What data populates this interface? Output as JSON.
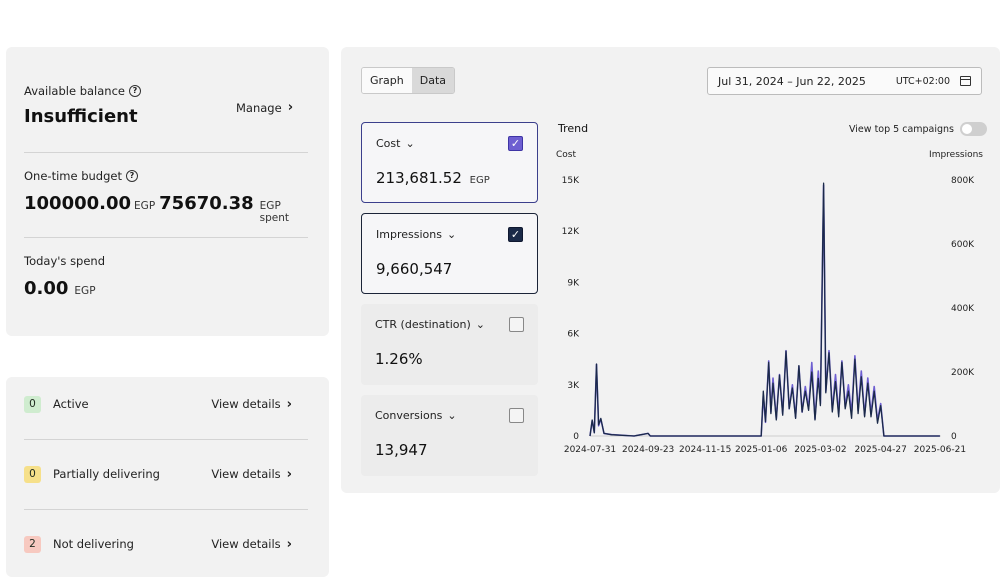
{
  "balance": {
    "available_label": "Available balance",
    "available_value": "Insufficient",
    "manage_label": "Manage",
    "budget_label": "One-time budget",
    "budget_value": "100000.00",
    "budget_unit": "EGP",
    "spent_value": "75670.38",
    "spent_unit": "EGP spent",
    "today_label": "Today's spend",
    "today_value": "0.00",
    "today_unit": "EGP"
  },
  "status": {
    "rows": [
      {
        "count": "0",
        "label": "Active",
        "link": "View details",
        "color": "#cfeccf"
      },
      {
        "count": "0",
        "label": "Partially delivering",
        "link": "View details",
        "color": "#f6e08a"
      },
      {
        "count": "2",
        "label": "Not delivering",
        "link": "View details",
        "color": "#f7c9c0"
      }
    ]
  },
  "toolbar": {
    "graph_label": "Graph",
    "data_label": "Data",
    "date_range": "Jul 31, 2024 – Jun 22, 2025",
    "timezone": "UTC+02:00"
  },
  "metrics": {
    "cost": {
      "name": "Cost",
      "value": "213,681.52",
      "unit": "EGP",
      "checked": true
    },
    "impressions": {
      "name": "Impressions",
      "value": "9,660,547",
      "checked": true
    },
    "ctr": {
      "name": "CTR (destination)",
      "value": "1.26%",
      "checked": false
    },
    "conversions": {
      "name": "Conversions",
      "value": "13,947",
      "checked": false
    }
  },
  "trend": {
    "title": "Trend",
    "view_top_label": "View top 5 campaigns"
  },
  "colors": {
    "cost_series": "#6e5fd1",
    "impressions_series": "#1b2a48"
  },
  "chart_data": {
    "type": "line",
    "left_axis_label": "Cost",
    "right_axis_label": "Impressions",
    "left_ticks": [
      "0",
      "3K",
      "6K",
      "9K",
      "12K",
      "15K"
    ],
    "right_ticks": [
      "0",
      "200K",
      "400K",
      "600K",
      "800K"
    ],
    "ylim_left": [
      0,
      15000
    ],
    "ylim_right": [
      0,
      800000
    ],
    "x_tick_labels": [
      "2024-07-31",
      "2024-09-23",
      "2024-11-15",
      "2025-01-06",
      "2025-03-02",
      "2025-04-27",
      "2025-06-21"
    ],
    "x_range": [
      "2024-07-31",
      "2025-06-22"
    ],
    "series": [
      {
        "name": "Cost",
        "axis": "left",
        "points": [
          [
            "2024-07-31",
            0
          ],
          [
            "2024-08-02",
            900
          ],
          [
            "2024-08-04",
            200
          ],
          [
            "2024-08-06",
            4200
          ],
          [
            "2024-08-08",
            600
          ],
          [
            "2024-08-10",
            1000
          ],
          [
            "2024-08-13",
            150
          ],
          [
            "2024-08-20",
            80
          ],
          [
            "2024-09-10",
            0
          ],
          [
            "2024-09-23",
            150
          ],
          [
            "2024-09-25",
            0
          ],
          [
            "2025-01-06",
            0
          ],
          [
            "2025-01-08",
            2400
          ],
          [
            "2025-01-10",
            800
          ],
          [
            "2025-01-13",
            4400
          ],
          [
            "2025-01-15",
            1400
          ],
          [
            "2025-01-17",
            3400
          ],
          [
            "2025-01-20",
            1000
          ],
          [
            "2025-01-23",
            3600
          ],
          [
            "2025-01-26",
            1300
          ],
          [
            "2025-01-29",
            5000
          ],
          [
            "2025-02-01",
            1600
          ],
          [
            "2025-02-04",
            3000
          ],
          [
            "2025-02-07",
            1100
          ],
          [
            "2025-02-10",
            4100
          ],
          [
            "2025-02-13",
            1400
          ],
          [
            "2025-02-16",
            2900
          ],
          [
            "2025-02-19",
            1600
          ],
          [
            "2025-02-22",
            4300
          ],
          [
            "2025-02-25",
            1000
          ],
          [
            "2025-02-28",
            3800
          ],
          [
            "2025-03-02",
            1900
          ],
          [
            "2025-03-05",
            14700
          ],
          [
            "2025-03-07",
            2600
          ],
          [
            "2025-03-10",
            5000
          ],
          [
            "2025-03-13",
            1500
          ],
          [
            "2025-03-16",
            3600
          ],
          [
            "2025-03-19",
            1300
          ],
          [
            "2025-03-22",
            4400
          ],
          [
            "2025-03-25",
            1700
          ],
          [
            "2025-03-28",
            3000
          ],
          [
            "2025-03-31",
            1300
          ],
          [
            "2025-04-03",
            4700
          ],
          [
            "2025-04-06",
            1500
          ],
          [
            "2025-04-09",
            3800
          ],
          [
            "2025-04-12",
            1200
          ],
          [
            "2025-04-15",
            3400
          ],
          [
            "2025-04-18",
            1300
          ],
          [
            "2025-04-21",
            2900
          ],
          [
            "2025-04-24",
            900
          ],
          [
            "2025-04-27",
            1900
          ],
          [
            "2025-04-30",
            0
          ],
          [
            "2025-06-21",
            0
          ]
        ]
      },
      {
        "name": "Impressions",
        "axis": "right",
        "points": [
          [
            "2024-07-31",
            0
          ],
          [
            "2024-08-02",
            50000
          ],
          [
            "2024-08-04",
            10000
          ],
          [
            "2024-08-06",
            225000
          ],
          [
            "2024-08-08",
            35000
          ],
          [
            "2024-08-10",
            55000
          ],
          [
            "2024-08-13",
            8000
          ],
          [
            "2024-08-20",
            4000
          ],
          [
            "2024-09-10",
            0
          ],
          [
            "2024-09-23",
            8000
          ],
          [
            "2024-09-25",
            0
          ],
          [
            "2025-01-06",
            0
          ],
          [
            "2025-01-08",
            140000
          ],
          [
            "2025-01-10",
            45000
          ],
          [
            "2025-01-13",
            230000
          ],
          [
            "2025-01-15",
            70000
          ],
          [
            "2025-01-17",
            165000
          ],
          [
            "2025-01-20",
            50000
          ],
          [
            "2025-01-23",
            190000
          ],
          [
            "2025-01-26",
            65000
          ],
          [
            "2025-01-29",
            265000
          ],
          [
            "2025-02-01",
            85000
          ],
          [
            "2025-02-04",
            150000
          ],
          [
            "2025-02-07",
            55000
          ],
          [
            "2025-02-10",
            220000
          ],
          [
            "2025-02-13",
            75000
          ],
          [
            "2025-02-16",
            140000
          ],
          [
            "2025-02-19",
            80000
          ],
          [
            "2025-02-22",
            200000
          ],
          [
            "2025-02-25",
            50000
          ],
          [
            "2025-02-28",
            180000
          ],
          [
            "2025-03-02",
            95000
          ],
          [
            "2025-03-05",
            790000
          ],
          [
            "2025-03-07",
            135000
          ],
          [
            "2025-03-10",
            260000
          ],
          [
            "2025-03-13",
            75000
          ],
          [
            "2025-03-16",
            170000
          ],
          [
            "2025-03-19",
            60000
          ],
          [
            "2025-03-22",
            230000
          ],
          [
            "2025-03-25",
            85000
          ],
          [
            "2025-03-28",
            140000
          ],
          [
            "2025-03-31",
            55000
          ],
          [
            "2025-04-03",
            240000
          ],
          [
            "2025-04-06",
            70000
          ],
          [
            "2025-04-09",
            185000
          ],
          [
            "2025-04-12",
            60000
          ],
          [
            "2025-04-15",
            165000
          ],
          [
            "2025-04-18",
            60000
          ],
          [
            "2025-04-21",
            140000
          ],
          [
            "2025-04-24",
            40000
          ],
          [
            "2025-04-27",
            95000
          ],
          [
            "2025-04-30",
            0
          ],
          [
            "2025-06-21",
            0
          ]
        ]
      }
    ]
  }
}
